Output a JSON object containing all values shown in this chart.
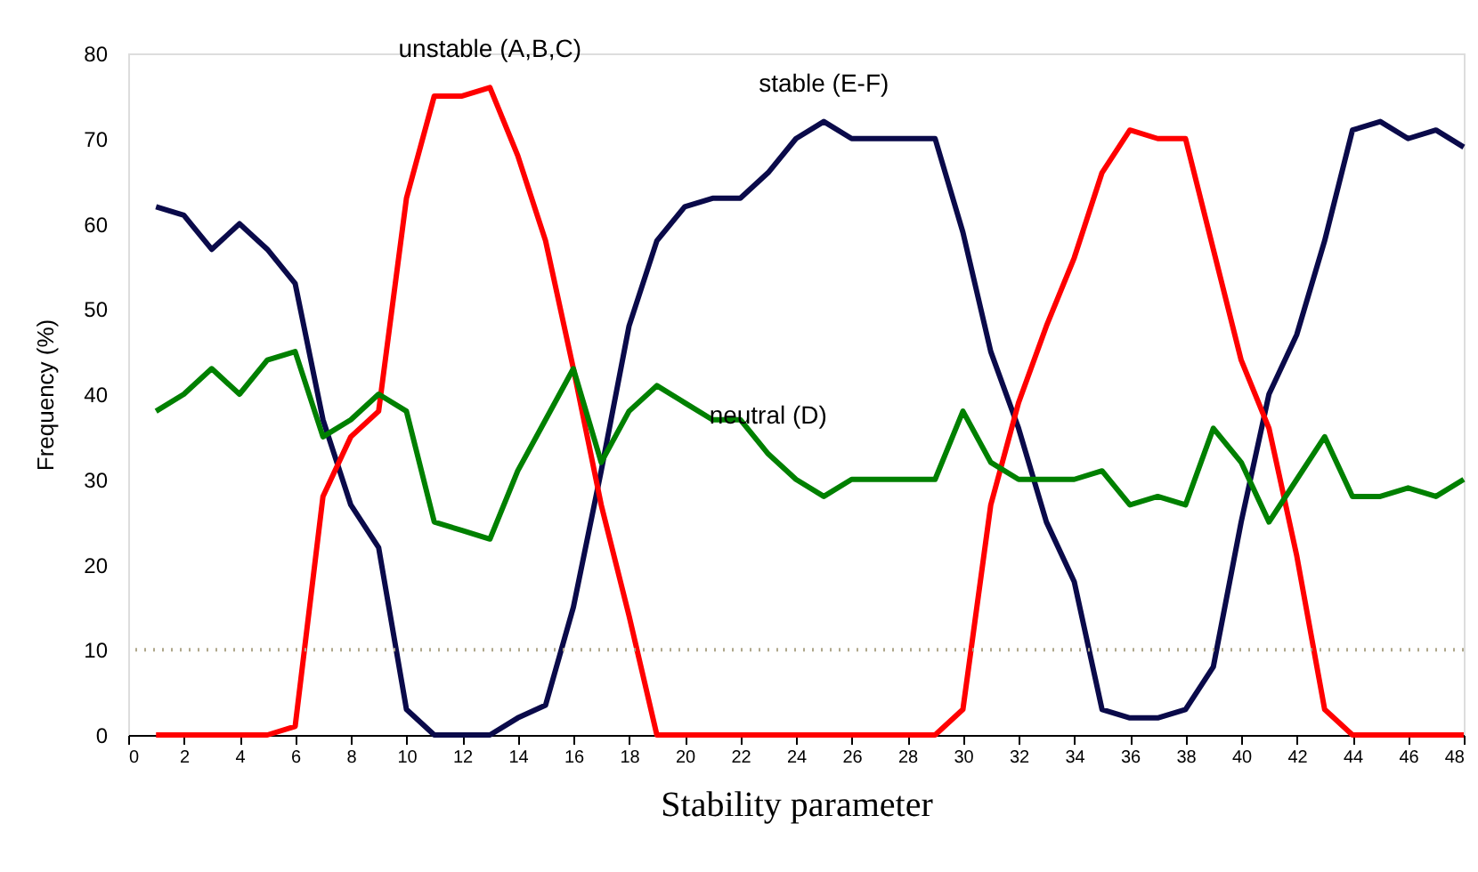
{
  "chart_data": {
    "type": "line",
    "xlabel": "Stability parameter",
    "ylabel": "Frequency (%)",
    "x": [
      1,
      2,
      3,
      4,
      5,
      6,
      7,
      8,
      9,
      10,
      11,
      12,
      13,
      14,
      15,
      16,
      17,
      18,
      19,
      20,
      21,
      22,
      23,
      24,
      25,
      26,
      27,
      28,
      29,
      30,
      31,
      32,
      33,
      34,
      35,
      36,
      37,
      38,
      39,
      40,
      41,
      42,
      43,
      44,
      45,
      46,
      47,
      48
    ],
    "series": [
      {
        "name": "stable (E-F)",
        "color": "#0a0a4a",
        "values": [
          62,
          61,
          57,
          60,
          57,
          53,
          37,
          27,
          22,
          3,
          0,
          0,
          0,
          2,
          3.5,
          15,
          31,
          48,
          58,
          62,
          63,
          63,
          66,
          70,
          72,
          70,
          70,
          70,
          70,
          59,
          45,
          36,
          25,
          18,
          3,
          2,
          2,
          3,
          8,
          25,
          40,
          47,
          58,
          71,
          72,
          70,
          71,
          69
        ]
      },
      {
        "name": "unstable (A,B,C)",
        "color": "#ff0000",
        "values": [
          0,
          0,
          0,
          0,
          0,
          1,
          28,
          35,
          38,
          63,
          75,
          75,
          76,
          68,
          58,
          43,
          27,
          14,
          0,
          0,
          0,
          0,
          0,
          0,
          0,
          0,
          0,
          0,
          0,
          3,
          27,
          39,
          48,
          56,
          66,
          71,
          70,
          70,
          57,
          44,
          36,
          21,
          3,
          0,
          0,
          0,
          0,
          0
        ]
      },
      {
        "name": "neutral (D)",
        "color": "#008000",
        "values": [
          38,
          40,
          43,
          40,
          44,
          45,
          35,
          37,
          40,
          38,
          25,
          24,
          23,
          31,
          37,
          43,
          32,
          38,
          41,
          39,
          37,
          37,
          33,
          30,
          28,
          30,
          30,
          30,
          30,
          38,
          32,
          30,
          30,
          30,
          31,
          27,
          28,
          27,
          36,
          32,
          25,
          30,
          35,
          28,
          28,
          29,
          28,
          30
        ]
      }
    ],
    "xlim": [
      0,
      48
    ],
    "xticks": [
      0,
      2,
      4,
      6,
      8,
      10,
      12,
      14,
      16,
      18,
      20,
      22,
      24,
      26,
      28,
      30,
      32,
      34,
      36,
      38,
      40,
      42,
      44,
      46,
      48
    ],
    "ylim": [
      0,
      80
    ],
    "yticks": [
      0,
      10,
      20,
      30,
      40,
      50,
      60,
      70,
      80
    ],
    "ref_lines": [
      {
        "axis": "y",
        "value": 10,
        "color": "#b0a88c",
        "line_style": "dotted"
      }
    ],
    "grid": false,
    "legend": false,
    "marker": "none",
    "line_style": "solid"
  }
}
